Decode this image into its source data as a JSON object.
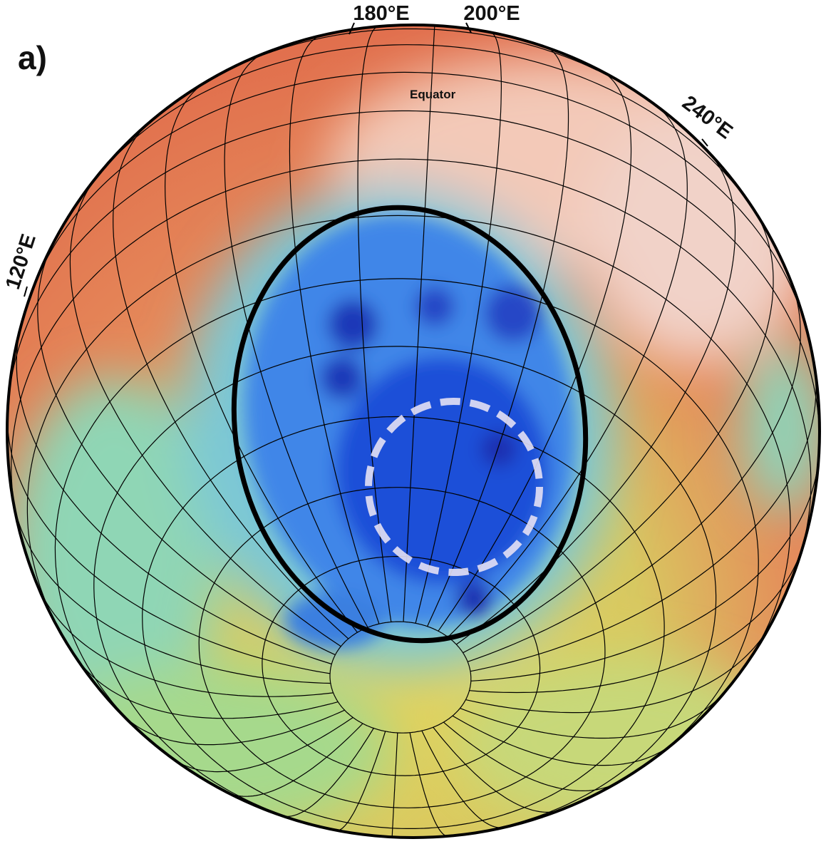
{
  "panel_label": "a)",
  "equator_label": "Equator",
  "longitude_labels": [
    "180°E",
    "200°E",
    "240°E",
    "120°E"
  ]
}
